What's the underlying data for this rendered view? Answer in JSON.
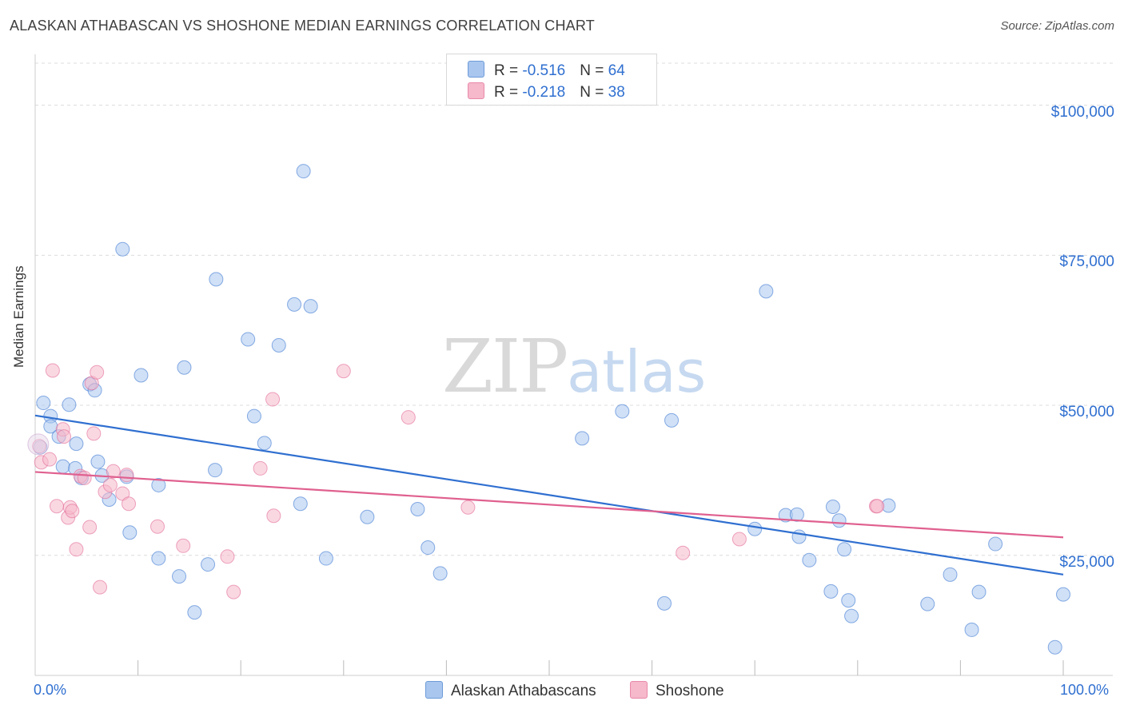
{
  "title": "ALASKAN ATHABASCAN VS SHOSHONE MEDIAN EARNINGS CORRELATION CHART",
  "source": "Source: ZipAtlas.com",
  "watermark": {
    "zip": "ZIP",
    "atlas": "atlas"
  },
  "legend_top": {
    "rows": [
      {
        "r_label": "R = ",
        "r_value": "-0.516",
        "n_label": "N = ",
        "n_value": "64",
        "color": "#a9c6ef"
      },
      {
        "r_label": "R = ",
        "r_value": "-0.218",
        "n_label": "N = ",
        "n_value": "38",
        "color": "#f6b8cb"
      }
    ]
  },
  "legend_bottom": [
    {
      "label": "Alaskan Athabascans",
      "color": "#a9c6ef"
    },
    {
      "label": "Shoshone",
      "color": "#f6b8cb"
    }
  ],
  "chart_data": {
    "type": "scatter",
    "ylabel": "Median Earnings",
    "xlim": [
      0,
      100
    ],
    "ylim": [
      5000,
      107000
    ],
    "x_tick_labels": [
      "0.0%",
      "100.0%"
    ],
    "y_ticks": [
      25000,
      50000,
      75000,
      100000
    ],
    "y_tick_labels": [
      "$25,000",
      "$50,000",
      "$75,000",
      "$100,000"
    ],
    "grid": true,
    "series": [
      {
        "name": "Alaskan Athabascans",
        "color": "#2f6fd0",
        "fill": "#a9c6ef",
        "trend": {
          "x": [
            0,
            100
          ],
          "y": [
            48300,
            21800
          ]
        },
        "points": [
          [
            0.5,
            43000
          ],
          [
            0.8,
            50400
          ],
          [
            1.5,
            48200
          ],
          [
            1.5,
            46500
          ],
          [
            2.3,
            44800
          ],
          [
            2.7,
            39800
          ],
          [
            3.3,
            50100
          ],
          [
            4.0,
            43600
          ],
          [
            3.9,
            39500
          ],
          [
            4.5,
            37900
          ],
          [
            5.3,
            53500
          ],
          [
            5.8,
            52500
          ],
          [
            6.1,
            40600
          ],
          [
            6.5,
            38300
          ],
          [
            7.2,
            34300
          ],
          [
            8.5,
            76000
          ],
          [
            8.9,
            38100
          ],
          [
            9.2,
            28800
          ],
          [
            10.3,
            55000
          ],
          [
            12.0,
            36700
          ],
          [
            12.0,
            24500
          ],
          [
            14.0,
            21500
          ],
          [
            14.5,
            56300
          ],
          [
            15.5,
            15500
          ],
          [
            16.8,
            23500
          ],
          [
            17.5,
            39200
          ],
          [
            17.6,
            71000
          ],
          [
            20.7,
            61000
          ],
          [
            21.3,
            48200
          ],
          [
            22.3,
            43700
          ],
          [
            23.7,
            60000
          ],
          [
            25.2,
            66800
          ],
          [
            25.8,
            33600
          ],
          [
            26.1,
            89000
          ],
          [
            26.8,
            66500
          ],
          [
            28.3,
            24500
          ],
          [
            32.3,
            31400
          ],
          [
            37.2,
            32700
          ],
          [
            38.2,
            26300
          ],
          [
            39.4,
            22000
          ],
          [
            53.2,
            44500
          ],
          [
            57.1,
            49000
          ],
          [
            61.2,
            17000
          ],
          [
            61.9,
            47500
          ],
          [
            70.0,
            29400
          ],
          [
            71.1,
            69000
          ],
          [
            73.0,
            31700
          ],
          [
            74.1,
            31800
          ],
          [
            74.3,
            28100
          ],
          [
            75.3,
            24200
          ],
          [
            77.4,
            19000
          ],
          [
            77.6,
            33100
          ],
          [
            78.2,
            30800
          ],
          [
            78.7,
            26000
          ],
          [
            79.1,
            17500
          ],
          [
            79.4,
            14900
          ],
          [
            83.0,
            33300
          ],
          [
            86.8,
            16900
          ],
          [
            89.0,
            21800
          ],
          [
            91.1,
            12600
          ],
          [
            91.8,
            18900
          ],
          [
            93.4,
            26900
          ],
          [
            99.2,
            9700
          ],
          [
            100.0,
            18500
          ]
        ]
      },
      {
        "name": "Shoshone",
        "color": "#e0608f",
        "fill": "#f6b8cb",
        "trend": {
          "x": [
            0,
            100
          ],
          "y": [
            38900,
            28000
          ]
        },
        "points": [
          [
            0.4,
            43200
          ],
          [
            0.6,
            40500
          ],
          [
            1.4,
            41000
          ],
          [
            1.7,
            55800
          ],
          [
            2.1,
            33200
          ],
          [
            2.7,
            46000
          ],
          [
            2.8,
            44800
          ],
          [
            3.2,
            31300
          ],
          [
            3.4,
            33000
          ],
          [
            3.6,
            32400
          ],
          [
            4.0,
            26000
          ],
          [
            4.4,
            38200
          ],
          [
            4.8,
            37900
          ],
          [
            5.3,
            29700
          ],
          [
            5.5,
            53700
          ],
          [
            5.7,
            45300
          ],
          [
            6.0,
            55500
          ],
          [
            6.3,
            19700
          ],
          [
            6.8,
            35600
          ],
          [
            7.3,
            36700
          ],
          [
            7.6,
            39000
          ],
          [
            8.5,
            35300
          ],
          [
            8.9,
            38400
          ],
          [
            9.1,
            33600
          ],
          [
            11.9,
            29800
          ],
          [
            14.4,
            26600
          ],
          [
            18.7,
            24800
          ],
          [
            19.3,
            18900
          ],
          [
            21.9,
            39500
          ],
          [
            23.1,
            51000
          ],
          [
            23.2,
            31600
          ],
          [
            30.0,
            55700
          ],
          [
            36.3,
            48000
          ],
          [
            42.1,
            33000
          ],
          [
            63.0,
            25400
          ],
          [
            68.5,
            27700
          ],
          [
            81.8,
            33200
          ],
          [
            81.9,
            33200
          ]
        ]
      }
    ]
  }
}
